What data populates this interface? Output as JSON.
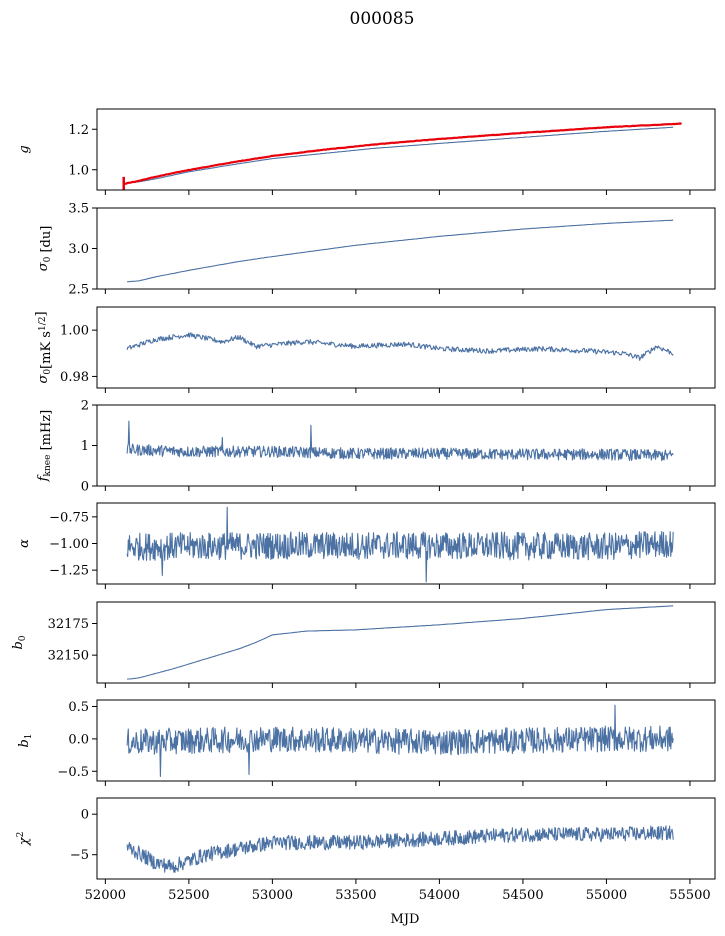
{
  "figure": {
    "title": "000085",
    "xlabel": "MJD"
  },
  "colors": {
    "series": "#4c72a4",
    "fit": "#e8000b",
    "axes": "#000000"
  },
  "chart_data": [
    {
      "type": "line",
      "id": "g",
      "ylabel": "g",
      "ylim": [
        0.9,
        1.3
      ],
      "yticks": [
        1.0,
        1.2
      ],
      "xlim": [
        51950,
        55650
      ],
      "series": [
        {
          "name": "",
          "points": [
            [
              52130,
              0.935
            ],
            [
              52200,
              0.94
            ],
            [
              52300,
              0.955
            ],
            [
              52500,
              0.99
            ],
            [
              52800,
              1.03
            ],
            [
              53000,
              1.055
            ],
            [
              53300,
              1.08
            ],
            [
              53600,
              1.105
            ],
            [
              54000,
              1.13
            ],
            [
              54500,
              1.16
            ],
            [
              55000,
              1.19
            ],
            [
              55400,
              1.21
            ]
          ]
        },
        {
          "name": "",
          "points": [
            [
              52110,
              0.93
            ],
            [
              52200,
              0.945
            ],
            [
              52300,
              0.965
            ],
            [
              52500,
              0.999
            ],
            [
              52800,
              1.042
            ],
            [
              53000,
              1.068
            ],
            [
              53300,
              1.098
            ],
            [
              53600,
              1.124
            ],
            [
              54000,
              1.152
            ],
            [
              54500,
              1.182
            ],
            [
              55000,
              1.21
            ],
            [
              55450,
              1.228
            ]
          ]
        }
      ]
    },
    {
      "type": "line",
      "id": "sigma0_du",
      "ylabel": "σ",
      "ylabel_sub": "0",
      "ylabel_suffix": " [du]",
      "ylim": [
        2.5,
        3.5
      ],
      "yticks": [
        2.5,
        3.0,
        3.5
      ],
      "xlim": [
        51950,
        55650
      ],
      "series": [
        {
          "name": "",
          "points": [
            [
              52130,
              2.59
            ],
            [
              52200,
              2.6
            ],
            [
              52300,
              2.65
            ],
            [
              52500,
              2.73
            ],
            [
              52800,
              2.84
            ],
            [
              53000,
              2.9
            ],
            [
              53500,
              3.04
            ],
            [
              54000,
              3.15
            ],
            [
              54500,
              3.24
            ],
            [
              55000,
              3.31
            ],
            [
              55400,
              3.35
            ]
          ]
        }
      ]
    },
    {
      "type": "line",
      "id": "sigma0_mk",
      "ylabel": "σ",
      "ylabel_sub": "0",
      "ylabel_suffix": "[mK s",
      "ylabel_sup": "1/2",
      "ylabel_end": "]",
      "ylim": [
        0.975,
        1.01
      ],
      "yticks": [
        0.98,
        1.0
      ],
      "xlim": [
        51950,
        55650
      ],
      "series": [
        {
          "name": "",
          "points": [
            [
              52130,
              0.992
            ],
            [
              52300,
              0.996
            ],
            [
              52500,
              0.998
            ],
            [
              52700,
              0.995
            ],
            [
              52800,
              0.997
            ],
            [
              52900,
              0.993
            ],
            [
              53200,
              0.995
            ],
            [
              53500,
              0.993
            ],
            [
              53800,
              0.994
            ],
            [
              54000,
              0.992
            ],
            [
              54300,
              0.991
            ],
            [
              54600,
              0.992
            ],
            [
              54900,
              0.991
            ],
            [
              55100,
              0.99
            ],
            [
              55200,
              0.988
            ],
            [
              55300,
              0.993
            ],
            [
              55400,
              0.99
            ]
          ]
        }
      ]
    },
    {
      "type": "line",
      "id": "fknee",
      "ylabel": "f",
      "ylabel_sub": "knee",
      "ylabel_suffix": " [mHz]",
      "ylim": [
        0,
        2
      ],
      "yticks": [
        0,
        1,
        2
      ],
      "xlim": [
        51950,
        55650
      ],
      "noise": {
        "base": 0.82,
        "amp": 0.14,
        "spikes": [
          [
            52140,
            1.6
          ],
          [
            53230,
            1.5
          ],
          [
            52700,
            1.2
          ]
        ]
      },
      "series": [
        {
          "name": "",
          "points": [
            [
              52130,
              0.9
            ],
            [
              52500,
              0.85
            ],
            [
              53000,
              0.85
            ],
            [
              53500,
              0.8
            ],
            [
              54000,
              0.8
            ],
            [
              54500,
              0.78
            ],
            [
              55000,
              0.78
            ],
            [
              55400,
              0.75
            ]
          ]
        }
      ]
    },
    {
      "type": "line",
      "id": "alpha",
      "ylabel": "α",
      "ylim": [
        -1.38,
        -0.62
      ],
      "yticks": [
        -0.75,
        -1.0,
        -1.25
      ],
      "xlim": [
        51950,
        55650
      ],
      "noise": {
        "base": -1.02,
        "amp": 0.13,
        "spikes": [
          [
            52730,
            -0.66
          ],
          [
            53920,
            -1.36
          ],
          [
            52340,
            -1.3
          ]
        ]
      },
      "series": [
        {
          "name": "",
          "points": [
            [
              52130,
              -1.03
            ],
            [
              53000,
              -1.02
            ],
            [
              54000,
              -1.02
            ],
            [
              55000,
              -1.03
            ],
            [
              55400,
              -1.0
            ]
          ]
        }
      ]
    },
    {
      "type": "line",
      "id": "b0",
      "ylabel": "b",
      "ylabel_sub": "0",
      "ylim": [
        32128,
        32192
      ],
      "yticks": [
        32150,
        32175
      ],
      "xlim": [
        51950,
        55650
      ],
      "series": [
        {
          "name": "",
          "points": [
            [
              52130,
              32131
            ],
            [
              52200,
              32132
            ],
            [
              52400,
              32139
            ],
            [
              52600,
              32147
            ],
            [
              52800,
              32155
            ],
            [
              52900,
              32160
            ],
            [
              53000,
              32166
            ],
            [
              53200,
              32169
            ],
            [
              53500,
              32170
            ],
            [
              54000,
              32174
            ],
            [
              54500,
              32179
            ],
            [
              55000,
              32186
            ],
            [
              55400,
              32189
            ]
          ]
        }
      ]
    },
    {
      "type": "line",
      "id": "b1",
      "ylabel": "b",
      "ylabel_sub": "1",
      "ylim": [
        -0.65,
        0.6
      ],
      "yticks": [
        0.5,
        0.0,
        -0.5
      ],
      "xlim": [
        51950,
        55650
      ],
      "noise": {
        "base": -0.02,
        "amp": 0.2,
        "spikes": [
          [
            55050,
            0.52
          ],
          [
            52330,
            -0.58
          ],
          [
            52860,
            -0.55
          ]
        ]
      },
      "series": [
        {
          "name": "",
          "points": [
            [
              52130,
              -0.05
            ],
            [
              53000,
              0.0
            ],
            [
              54000,
              -0.05
            ],
            [
              55000,
              0.0
            ],
            [
              55400,
              0.0
            ]
          ]
        }
      ]
    },
    {
      "type": "line",
      "id": "chi2",
      "ylabel": "χ",
      "ylabel_sup": "2",
      "ylim": [
        -8,
        2
      ],
      "yticks": [
        0,
        -5
      ],
      "xlim": [
        51950,
        55650
      ],
      "xticks": [
        52000,
        52500,
        53000,
        53500,
        54000,
        54500,
        55000,
        55500
      ],
      "noise": {
        "base": 0,
        "amp": 0.9,
        "spikes": []
      },
      "series": [
        {
          "name": "",
          "points": [
            [
              52130,
              -4
            ],
            [
              52300,
              -6
            ],
            [
              52400,
              -6.5
            ],
            [
              52600,
              -5
            ],
            [
              53000,
              -3.5
            ],
            [
              53500,
              -3.5
            ],
            [
              54000,
              -3
            ],
            [
              54500,
              -2.5
            ],
            [
              55000,
              -2.5
            ],
            [
              55400,
              -2.3
            ]
          ]
        }
      ]
    }
  ]
}
